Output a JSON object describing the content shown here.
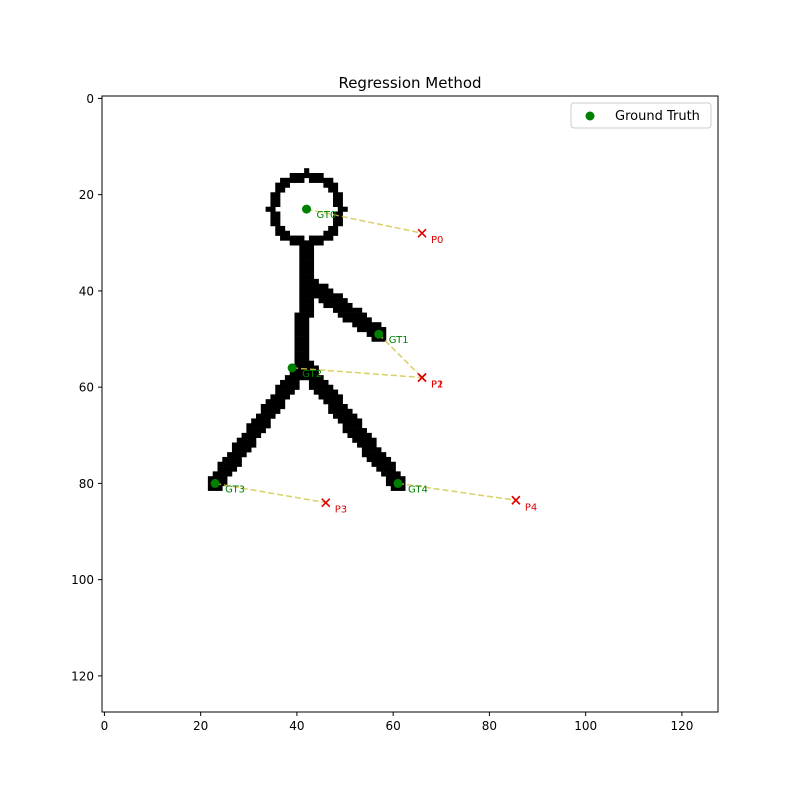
{
  "chart_data": {
    "type": "scatter",
    "title": "Regression Method",
    "xlabel": "",
    "ylabel": "",
    "xlim": [
      -0.5,
      127.5
    ],
    "ylim": [
      127.5,
      -0.5
    ],
    "y_inverted": true,
    "x_ticks": [
      0,
      20,
      40,
      60,
      80,
      100,
      120
    ],
    "y_ticks": [
      0,
      20,
      40,
      60,
      80,
      100,
      120
    ],
    "grid": false,
    "legend": {
      "position": "upper right",
      "entries": [
        {
          "label": "Ground Truth",
          "marker": "circle",
          "color": "#008000"
        }
      ]
    },
    "ground_truth": {
      "color": "#008000",
      "labels": [
        "GT0",
        "GT1",
        "GT2",
        "GT3",
        "GT4"
      ],
      "points": [
        [
          42,
          23
        ],
        [
          57,
          49
        ],
        [
          39,
          56
        ],
        [
          23,
          80
        ],
        [
          61,
          80
        ]
      ]
    },
    "predictions": {
      "color": "#e00000",
      "marker": "x",
      "labels": [
        "P0",
        "P1",
        "P2",
        "P3",
        "P4"
      ],
      "points": [
        [
          66,
          28
        ],
        [
          66,
          58
        ],
        [
          66,
          58
        ],
        [
          46,
          84
        ],
        [
          85.5,
          83.5
        ]
      ]
    },
    "connectors": {
      "color": "#d4c84a",
      "style": "dashed"
    },
    "background_image": {
      "description": "binary stick figure",
      "head": {
        "center": [
          42,
          23
        ],
        "outer_radius": 8,
        "inner_radius": 6
      },
      "strokes": [
        {
          "name": "neck",
          "from": [
            42,
            31
          ],
          "to": [
            42,
            40
          ]
        },
        {
          "name": "torso",
          "from": [
            42,
            40
          ],
          "to": [
            41,
            56
          ]
        },
        {
          "name": "right-arm",
          "from": [
            42,
            38
          ],
          "to": [
            57,
            49
          ]
        },
        {
          "name": "left-leg",
          "from": [
            41,
            56
          ],
          "to": [
            23,
            80
          ]
        },
        {
          "name": "right-leg",
          "from": [
            42,
            56
          ],
          "to": [
            61,
            80
          ]
        }
      ]
    }
  }
}
